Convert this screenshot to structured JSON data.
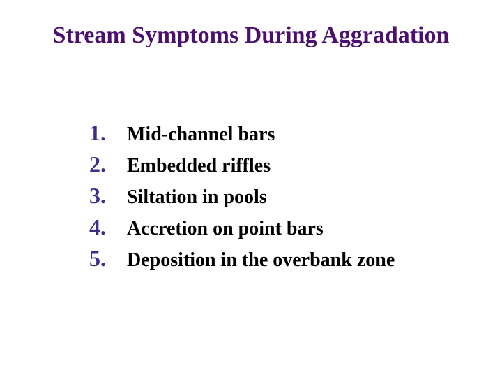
{
  "slide": {
    "title": "Stream Symptoms During Aggradation",
    "title_color": "#4b0f6e",
    "background_color": "#ffffff",
    "number_color": "#3b2f8c",
    "text_color": "#000000",
    "title_fontsize": 34,
    "number_fontsize": 32,
    "text_fontsize": 28,
    "items": [
      {
        "number": "1.",
        "text": "Mid-channel bars"
      },
      {
        "number": "2.",
        "text": "Embedded riffles"
      },
      {
        "number": "3.",
        "text": "Siltation in pools"
      },
      {
        "number": "4.",
        "text": "Accretion on point bars"
      },
      {
        "number": "5.",
        "text": "Deposition in the overbank zone"
      }
    ]
  }
}
